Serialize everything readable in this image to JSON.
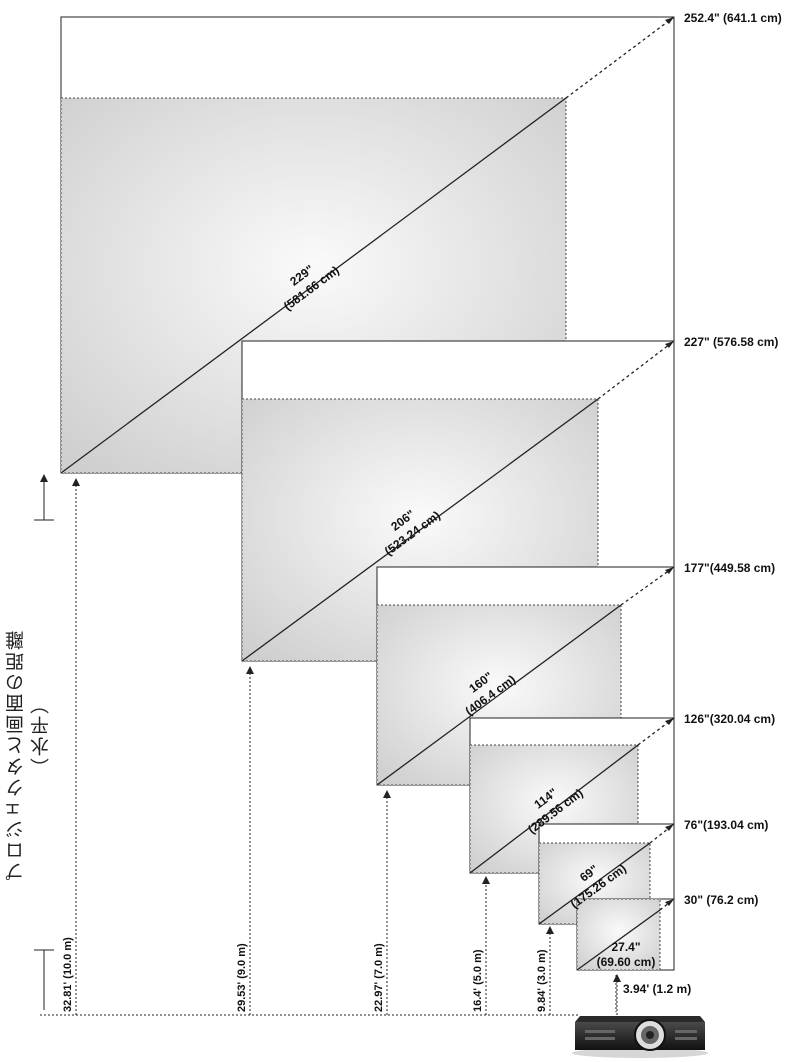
{
  "axis_title": {
    "line1": "プロジェクタと画面の距離",
    "line2": "（水平）"
  },
  "screens": [
    {
      "id": "s1",
      "diag_max": "252.4\" (641.1 cm)",
      "diag_in": "229\"",
      "diag_cm": "(581.66 cm)",
      "distance": "32.81' (10.0 m)"
    },
    {
      "id": "s2",
      "diag_max": "227\" (576.58 cm)",
      "diag_in": "206\"",
      "diag_cm": "(523.24 cm)",
      "distance": "29.53' (9.0 m)"
    },
    {
      "id": "s3",
      "diag_max": "177\"(449.58 cm)",
      "diag_in": "160\"",
      "diag_cm": "(406.4 cm)",
      "distance": "22.97' (7.0 m)"
    },
    {
      "id": "s4",
      "diag_max": "126\"(320.04 cm)",
      "diag_in": "114\"",
      "diag_cm": "(289.56 cm)",
      "distance": "16.4' (5.0 m)"
    },
    {
      "id": "s5",
      "diag_max": "76\"(193.04 cm)",
      "diag_in": "69\"",
      "diag_cm": "(175.26 cm)",
      "distance": "9.84' (3.0 m)"
    },
    {
      "id": "s6",
      "diag_max": "30\" (76.2 cm)",
      "diag_in": "27.4\"",
      "diag_cm": "(69.60 cm)",
      "distance": "3.94' (1.2 m)"
    }
  ],
  "colors": {
    "line": "#222222",
    "dotted": "#333333",
    "fill_inner": "#d9d9d9",
    "fill_light": "#f4f4f4"
  },
  "icons": {
    "projector": "projector-icon"
  }
}
